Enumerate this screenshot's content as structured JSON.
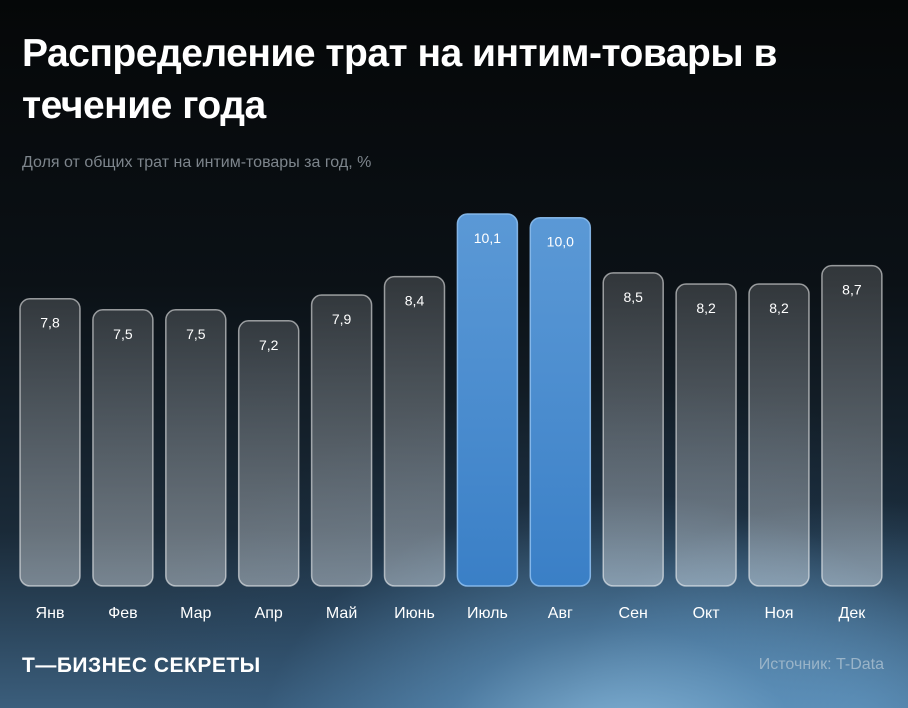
{
  "header": {
    "title": "Распределение трат на интим-товары в течение года",
    "subtitle": "Доля от общих трат на интим-товары за год, %"
  },
  "footer": {
    "brand": "Т—БИЗНЕС СЕКРЕТЫ",
    "source": "Источник: T-Data"
  },
  "colors": {
    "bar_default": "#c8d6e0",
    "bar_highlight": "#4f8fd0"
  },
  "chart_data": {
    "type": "bar",
    "title": "Распределение трат на интим-товары в течение года",
    "subtitle": "Доля от общих трат на интим-товары за год, %",
    "categories": [
      "Янв",
      "Фев",
      "Мар",
      "Апр",
      "Май",
      "Июнь",
      "Июль",
      "Авг",
      "Сен",
      "Окт",
      "Ноя",
      "Дек"
    ],
    "values": [
      7.8,
      7.5,
      7.5,
      7.2,
      7.9,
      8.4,
      10.1,
      10.0,
      8.5,
      8.2,
      8.2,
      8.7
    ],
    "value_labels": [
      "7,8",
      "7,5",
      "7,5",
      "7,2",
      "7,9",
      "8,4",
      "10,1",
      "10,0",
      "8,5",
      "8,2",
      "8,2",
      "8,7"
    ],
    "highlighted": [
      "Июль",
      "Авг"
    ],
    "ylim": [
      0,
      10.1
    ],
    "grid": false,
    "legend": "none"
  }
}
